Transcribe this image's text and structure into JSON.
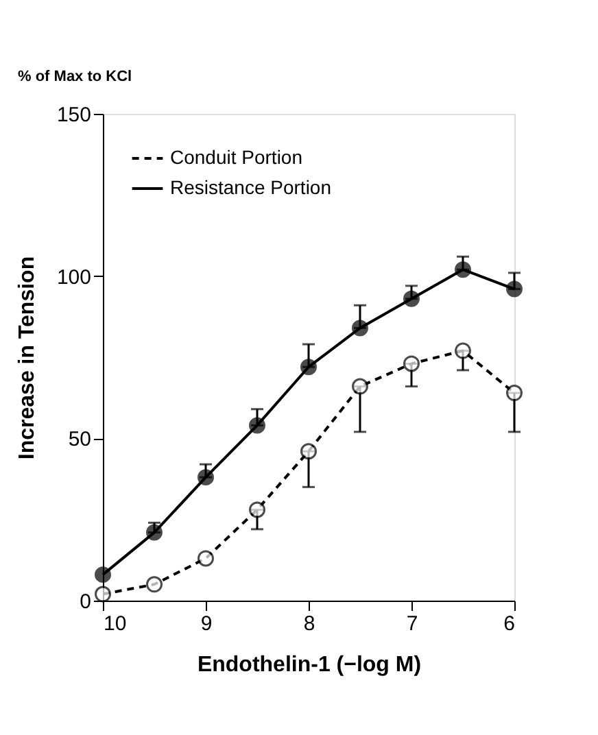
{
  "chart_data": {
    "type": "line",
    "xlabel": "Endothelin-1 (−log M)",
    "ylabel": "Increase in Tension",
    "annotations": [
      "% of Max to KCl"
    ],
    "x": [
      10,
      9.5,
      9,
      8.5,
      8,
      7.5,
      7,
      6.5,
      6
    ],
    "series": [
      {
        "name": "Conduit Portion",
        "color": "#000000",
        "line_style": "dashed",
        "values": [
          2,
          5,
          13,
          28,
          46,
          66,
          73,
          77,
          64
        ],
        "errors": [
          null,
          null,
          null,
          [
            22,
            28
          ],
          [
            35,
            46
          ],
          [
            52,
            66
          ],
          [
            66,
            73
          ],
          [
            71,
            77
          ],
          [
            52,
            64
          ]
        ]
      },
      {
        "name": "Resistance Portion",
        "color": "#000000",
        "line_style": "solid",
        "values": [
          8,
          21,
          38,
          54,
          72,
          84,
          93,
          102,
          96
        ],
        "errors": [
          null,
          [
            21,
            24
          ],
          [
            38,
            42
          ],
          [
            54,
            59
          ],
          [
            72,
            79
          ],
          [
            84,
            91
          ],
          [
            93,
            97
          ],
          [
            102,
            106
          ],
          [
            96,
            101
          ]
        ]
      }
    ],
    "xlim": [
      10,
      6
    ],
    "xticks": [
      10,
      9,
      8,
      7,
      6
    ],
    "ylim": [
      0,
      150
    ],
    "yticks": [
      0,
      50,
      100,
      150
    ],
    "marker": "circle",
    "grid": false,
    "legend": "top left"
  }
}
